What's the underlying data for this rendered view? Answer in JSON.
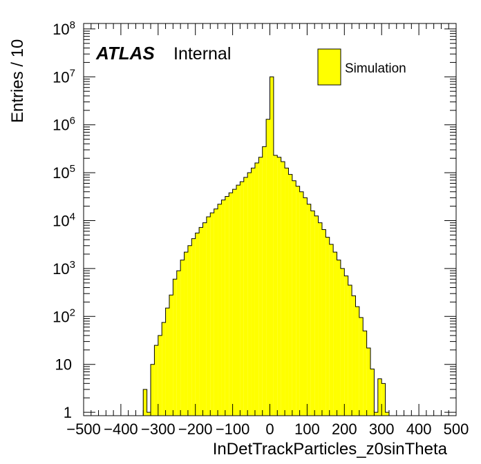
{
  "chart_data": {
    "type": "bar",
    "title": "",
    "xlabel": "InDetTrackParticles_z0sinTheta",
    "ylabel": "Entries / 10",
    "xlim": [
      -500,
      500
    ],
    "ylim": [
      0.85,
      130000000
    ],
    "yscale": "log",
    "grid": false,
    "legend_position": "top-right",
    "colors": {
      "fill": "#ffff00",
      "edge": "#000000"
    },
    "annotation": {
      "experiment": "ATLAS",
      "status": "Internal"
    },
    "legend": [
      "Simulation"
    ],
    "x_ticks": [
      "−500",
      "−400",
      "−300",
      "−200",
      "−100",
      "0",
      "100",
      "200",
      "300",
      "400",
      "500"
    ],
    "y_ticks": [
      {
        "value": 1,
        "base": "1",
        "exp": ""
      },
      {
        "value": 10,
        "base": "10",
        "exp": ""
      },
      {
        "value": 100,
        "base": "10",
        "exp": "2"
      },
      {
        "value": 1000,
        "base": "10",
        "exp": "3"
      },
      {
        "value": 10000,
        "base": "10",
        "exp": "4"
      },
      {
        "value": 100000,
        "base": "10",
        "exp": "5"
      },
      {
        "value": 1000000,
        "base": "10",
        "exp": "6"
      },
      {
        "value": 10000000,
        "base": "10",
        "exp": "7"
      },
      {
        "value": 100000000,
        "base": "10",
        "exp": "8"
      }
    ],
    "bin_width": 10,
    "x": [
      -340,
      -330,
      -320,
      -310,
      -300,
      -290,
      -280,
      -270,
      -260,
      -250,
      -240,
      -230,
      -220,
      -210,
      -200,
      -190,
      -180,
      -170,
      -160,
      -150,
      -140,
      -130,
      -120,
      -110,
      -100,
      -90,
      -80,
      -70,
      -60,
      -50,
      -40,
      -30,
      -20,
      -10,
      0,
      10,
      20,
      30,
      40,
      50,
      60,
      70,
      80,
      90,
      100,
      110,
      120,
      130,
      140,
      150,
      160,
      170,
      180,
      190,
      200,
      210,
      220,
      230,
      240,
      250,
      260,
      270,
      280,
      290,
      300,
      310,
      320,
      330,
      340
    ],
    "values": [
      3,
      1,
      10,
      25,
      40,
      75,
      150,
      280,
      600,
      900,
      1500,
      2200,
      3000,
      4200,
      5500,
      7200,
      9000,
      12000,
      14500,
      17500,
      22000,
      27000,
      32000,
      38000,
      45000,
      55000,
      65000,
      80000,
      100000,
      125000,
      160000,
      210000,
      350000,
      1300000,
      10000000,
      230000,
      210000,
      170000,
      125000,
      92000,
      68000,
      52000,
      40000,
      30000,
      22000,
      16000,
      12500,
      9000,
      6500,
      4500,
      3200,
      2200,
      1500,
      1000,
      700,
      450,
      270,
      160,
      95,
      50,
      22,
      8,
      1,
      5,
      4,
      1,
      0,
      0,
      0
    ]
  }
}
